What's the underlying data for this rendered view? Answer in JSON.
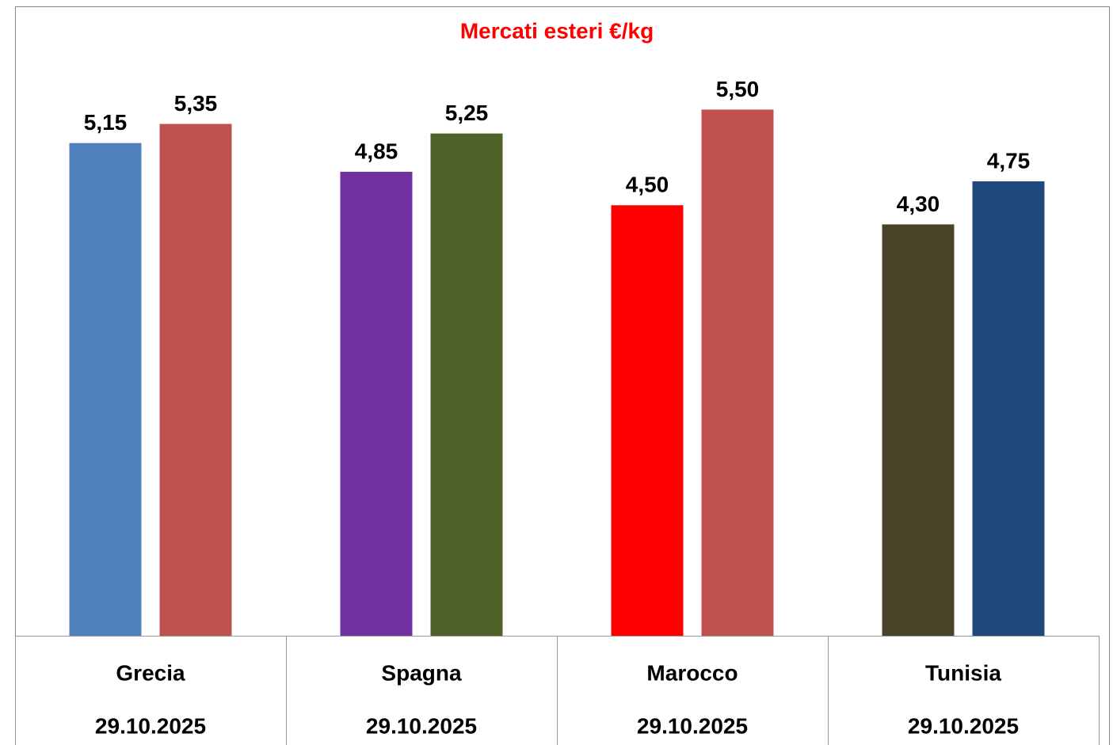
{
  "chart_data": {
    "type": "bar",
    "title": "Mercati esteri €/kg",
    "categories": [
      "Grecia",
      "Spagna",
      "Marocco",
      "Tunisia"
    ],
    "dates": [
      "29.10.2025",
      "29.10.2025",
      "29.10.2025",
      "29.10.2025"
    ],
    "series": [
      {
        "colors": [
          "#4f81bd",
          "#7030a0",
          "#ff0000",
          "#494429"
        ],
        "values": [
          5.15,
          4.85,
          4.5,
          4.3
        ],
        "value_labels": [
          "5,15",
          "4,85",
          "4,50",
          "4,30"
        ]
      },
      {
        "colors": [
          "#c0504d",
          "#4f6228",
          "#c0504d",
          "#1f497d"
        ],
        "values": [
          5.35,
          5.25,
          5.5,
          4.75
        ],
        "value_labels": [
          "5,35",
          "5,25",
          "5,50",
          "4,75"
        ]
      }
    ],
    "ylim": [
      0,
      6
    ],
    "title_color": "#ff0000"
  }
}
